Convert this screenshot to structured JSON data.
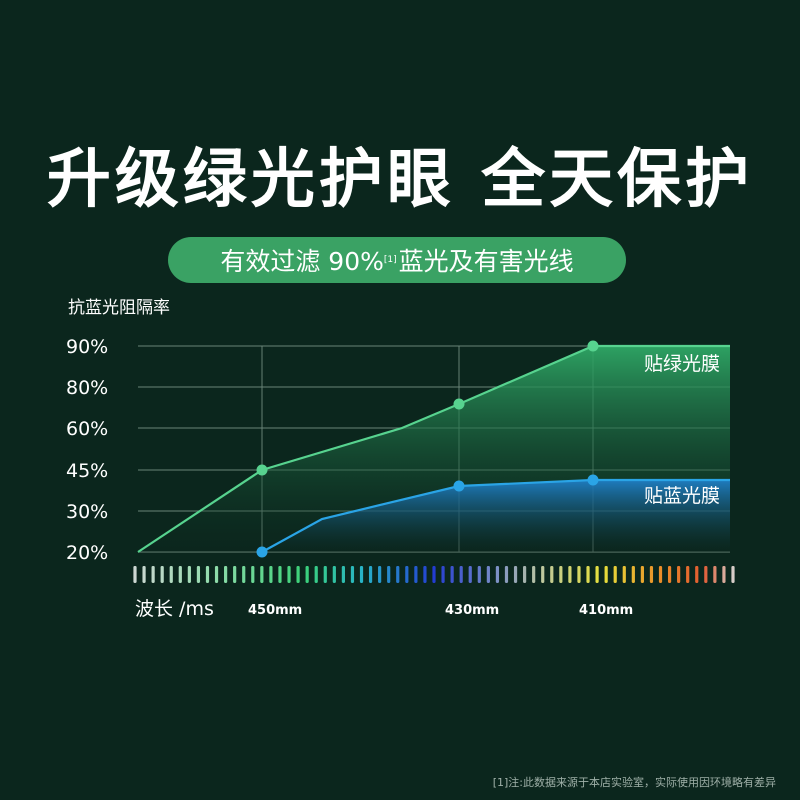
{
  "title": "升级绿光护眼 全天保护",
  "pill": {
    "text_prefix": "有效过滤 90%",
    "note_mark": "[1]",
    "text_suffix": "蓝光及有害光线"
  },
  "footnote": "[1]注:此数据来源于本店实验室，实际使用因环境略有差异",
  "colors": {
    "background": "#0b261d",
    "pill": "#3aa264",
    "green_series": "#57d38f",
    "blue_series": "#2aa4e6"
  },
  "chart_data": {
    "type": "area",
    "ylabel": "抗蓝光阻隔率",
    "xlabel": "波长 /ms",
    "y_ticks": [
      "90%",
      "80%",
      "60%",
      "45%",
      "30%",
      "20%"
    ],
    "x_markers": [
      "450mm",
      "430mm",
      "410mm"
    ],
    "grid": true,
    "series": [
      {
        "name": "贴绿光膜",
        "points": [
          {
            "x": "start",
            "y": "20%"
          },
          {
            "x": "450mm",
            "y": "45%",
            "marker": true
          },
          {
            "x": "between",
            "y": "60%"
          },
          {
            "x": "430mm",
            "y": "80%",
            "marker": true
          },
          {
            "x": "410mm",
            "y": "90%",
            "marker": true
          },
          {
            "x": "end",
            "y": "90%"
          }
        ]
      },
      {
        "name": "贴蓝光膜",
        "points": [
          {
            "x": "450mm",
            "y": "20%",
            "marker": true
          },
          {
            "x": "between",
            "y": "30%"
          },
          {
            "x": "430mm",
            "y": "45%",
            "marker": true
          },
          {
            "x": "410mm",
            "y": "45%",
            "marker": true
          },
          {
            "x": "end",
            "y": "45%"
          }
        ]
      }
    ]
  }
}
